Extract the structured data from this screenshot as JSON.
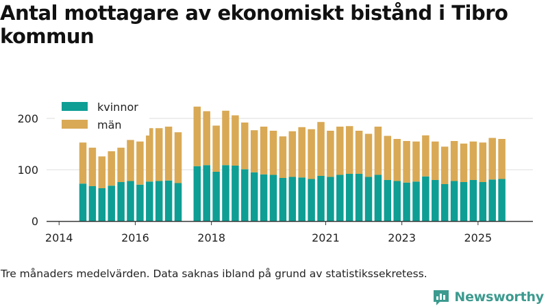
{
  "title": "Antal mottagare av ekonomiskt bistånd i Tibro kommun",
  "footnote": "Tre månaders medelvärden. Data saknas ibland på grund av statistikssekretess.",
  "brand": {
    "name": "Newsworthy",
    "logo_icon": "bar-chart-logo-icon"
  },
  "colors": {
    "kvinnor": "#0e9e94",
    "man": "#d9a955",
    "grid": "#dddddd",
    "axis": "#333333",
    "brand": "#3c9a8f"
  },
  "chart_data": {
    "type": "bar",
    "stacked": true,
    "title": "Antal mottagare av ekonomiskt bistånd i Tibro kommun",
    "xlabel": "",
    "ylabel": "",
    "ylim": [
      0,
      240
    ],
    "y_ticks": [
      0,
      100,
      200
    ],
    "x_ticks": [
      "2014",
      "2016",
      "2018",
      "2021",
      "2023",
      "2025"
    ],
    "grid": true,
    "legend_position": "top-left",
    "series": [
      {
        "name": "kvinnor",
        "color": "#0e9e94"
      },
      {
        "name": "män",
        "color": "#d9a955"
      }
    ],
    "periods": [
      {
        "x": "2014-Q2",
        "kvinnor": 73,
        "man": 80
      },
      {
        "x": "2014-Q3",
        "kvinnor": 68,
        "man": 75
      },
      {
        "x": "2014-Q4",
        "kvinnor": 64,
        "man": 62
      },
      {
        "x": "2015-Q1",
        "kvinnor": 69,
        "man": 67
      },
      {
        "x": "2015-Q2",
        "kvinnor": 76,
        "man": 67
      },
      {
        "x": "2015-Q3",
        "kvinnor": 78,
        "man": 80
      },
      {
        "x": "2015-Q4",
        "kvinnor": 71,
        "man": 84
      },
      {
        "x": "2016-Q1",
        "kvinnor": 77,
        "man": 104
      },
      {
        "x": "2016-Q2",
        "kvinnor": 78,
        "man": 103
      },
      {
        "x": "2016-Q3",
        "kvinnor": 79,
        "man": 105
      },
      {
        "x": "2016-Q4",
        "kvinnor": 74,
        "man": 99
      },
      {
        "x": "2017-Q1",
        "kvinnor": null,
        "man": null
      },
      {
        "x": "2017-Q2",
        "kvinnor": 107,
        "man": 116
      },
      {
        "x": "2017-Q3",
        "kvinnor": 109,
        "man": 105
      },
      {
        "x": "2017-Q4",
        "kvinnor": 96,
        "man": 90
      },
      {
        "x": "2018-Q1",
        "kvinnor": 109,
        "man": 106
      },
      {
        "x": "2018-Q2",
        "kvinnor": 108,
        "man": 98
      },
      {
        "x": "2018-Q3",
        "kvinnor": 101,
        "man": 91
      },
      {
        "x": "2018-Q4",
        "kvinnor": 95,
        "man": 82
      },
      {
        "x": "2019-Q1",
        "kvinnor": 91,
        "man": 93
      },
      {
        "x": "2019-Q2",
        "kvinnor": 90,
        "man": 86
      },
      {
        "x": "2019-Q3",
        "kvinnor": 84,
        "man": 81
      },
      {
        "x": "2019-Q4",
        "kvinnor": 86,
        "man": 89
      },
      {
        "x": "2020-Q1",
        "kvinnor": 85,
        "man": 98
      },
      {
        "x": "2020-Q2",
        "kvinnor": 82,
        "man": 97
      },
      {
        "x": "2020-Q3",
        "kvinnor": 88,
        "man": 105
      },
      {
        "x": "2020-Q4",
        "kvinnor": 86,
        "man": 90
      },
      {
        "x": "2021-Q1",
        "kvinnor": 90,
        "man": 94
      },
      {
        "x": "2021-Q2",
        "kvinnor": 92,
        "man": 93
      },
      {
        "x": "2021-Q3",
        "kvinnor": 92,
        "man": 84
      },
      {
        "x": "2021-Q4",
        "kvinnor": 86,
        "man": 84
      },
      {
        "x": "2022-Q1",
        "kvinnor": 90,
        "man": 94
      },
      {
        "x": "2022-Q2",
        "kvinnor": 80,
        "man": 86
      },
      {
        "x": "2022-Q3",
        "kvinnor": 78,
        "man": 82
      },
      {
        "x": "2022-Q4",
        "kvinnor": 75,
        "man": 81
      },
      {
        "x": "2023-Q1",
        "kvinnor": 77,
        "man": 78
      },
      {
        "x": "2023-Q2",
        "kvinnor": 87,
        "man": 80
      },
      {
        "x": "2023-Q3",
        "kvinnor": 80,
        "man": 75
      },
      {
        "x": "2023-Q4",
        "kvinnor": 72,
        "man": 73
      },
      {
        "x": "2024-Q1",
        "kvinnor": 78,
        "man": 78
      },
      {
        "x": "2024-Q2",
        "kvinnor": 76,
        "man": 75
      },
      {
        "x": "2024-Q3",
        "kvinnor": 80,
        "man": 75
      },
      {
        "x": "2024-Q4",
        "kvinnor": 76,
        "man": 77
      },
      {
        "x": "2025-Q1",
        "kvinnor": 81,
        "man": 81
      },
      {
        "x": "2025-Q2",
        "kvinnor": 82,
        "man": 78
      }
    ]
  }
}
